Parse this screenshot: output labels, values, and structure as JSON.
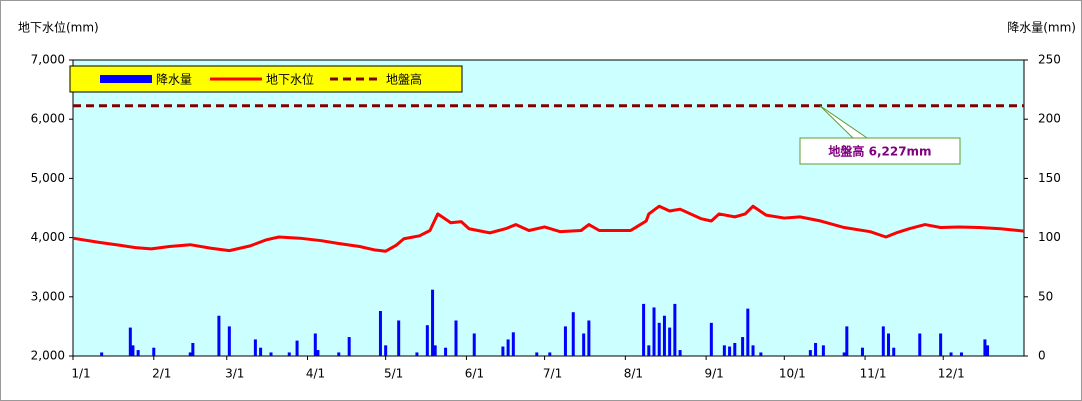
{
  "chart_data": {
    "type": "combo",
    "y_label": "地下水位(mm)",
    "y2_label": "降水量(mm)",
    "background": "#ccffff",
    "xlim": [
      0,
      365
    ],
    "xticks": [
      {
        "value": 0,
        "label": "1/1"
      },
      {
        "value": 31,
        "label": "2/1"
      },
      {
        "value": 59,
        "label": "3/1"
      },
      {
        "value": 90,
        "label": "4/1"
      },
      {
        "value": 120,
        "label": "5/1"
      },
      {
        "value": 151,
        "label": "6/1"
      },
      {
        "value": 181,
        "label": "7/1"
      },
      {
        "value": 212,
        "label": "8/1"
      },
      {
        "value": 243,
        "label": "9/1"
      },
      {
        "value": 273,
        "label": "10/1"
      },
      {
        "value": 304,
        "label": "11/1"
      },
      {
        "value": 334,
        "label": "12/1"
      }
    ],
    "ylim": [
      2000,
      7000
    ],
    "yticks": [
      {
        "value": 2000,
        "label": "2,000"
      },
      {
        "value": 3000,
        "label": "3,000"
      },
      {
        "value": 4000,
        "label": "4,000"
      },
      {
        "value": 5000,
        "label": "5,000"
      },
      {
        "value": 6000,
        "label": "6,000"
      },
      {
        "value": 7000,
        "label": "7,000"
      }
    ],
    "y2lim": [
      0,
      250
    ],
    "y2ticks": [
      0,
      50,
      100,
      150,
      200,
      250
    ],
    "legend": "top-left",
    "series": [
      {
        "name": "降水量",
        "type": "bar",
        "axis": "y2",
        "color": "#0000ff",
        "x": [
          11,
          22,
          23,
          25,
          31,
          45,
          46,
          56,
          60,
          70,
          72,
          76,
          83,
          86,
          93,
          94,
          102,
          106,
          118,
          120,
          125,
          132,
          136,
          138,
          139,
          143,
          147,
          154,
          165,
          167,
          169,
          178,
          183,
          189,
          192,
          196,
          198,
          219,
          221,
          223,
          225,
          227,
          229,
          231,
          233,
          245,
          250,
          252,
          254,
          257,
          259,
          261,
          264,
          283,
          285,
          288,
          296,
          297,
          303,
          311,
          313,
          315,
          325,
          333,
          337,
          341,
          350,
          351
        ],
        "values": [
          3,
          24,
          9,
          5,
          7,
          3,
          11,
          34,
          25,
          14,
          7,
          3,
          3,
          13,
          19,
          5,
          3,
          16,
          38,
          9,
          30,
          3,
          26,
          56,
          9,
          7,
          30,
          19,
          8,
          14,
          20,
          3,
          3,
          25,
          37,
          19,
          30,
          44,
          9,
          41,
          28,
          34,
          24,
          44,
          5,
          28,
          9,
          8,
          11,
          16,
          40,
          9,
          3,
          5,
          11,
          9,
          3,
          25,
          7,
          25,
          19,
          7,
          19,
          19,
          3,
          3,
          14,
          9
        ]
      },
      {
        "name": "地下水位",
        "type": "line",
        "color": "#ff0000",
        "x": [
          0,
          10,
          18,
          24,
          30,
          37,
          45,
          53,
          60,
          68,
          74,
          79,
          87,
          95,
          102,
          110,
          116,
          120,
          124,
          127,
          133,
          137,
          140,
          145,
          149,
          152,
          160,
          166,
          170,
          175,
          181,
          187,
          195,
          198,
          202,
          214,
          220,
          221,
          225,
          229,
          233,
          241,
          245,
          248,
          254,
          258,
          261,
          266,
          273,
          279,
          287,
          296,
          306,
          312,
          316,
          321,
          327,
          333,
          340,
          348,
          356,
          365
        ],
        "values": [
          3990,
          3920,
          3870,
          3830,
          3810,
          3850,
          3880,
          3820,
          3780,
          3860,
          3960,
          4010,
          3990,
          3950,
          3900,
          3850,
          3790,
          3770,
          3870,
          3980,
          4030,
          4120,
          4400,
          4250,
          4270,
          4150,
          4080,
          4150,
          4220,
          4120,
          4180,
          4100,
          4120,
          4220,
          4120,
          4120,
          4280,
          4400,
          4530,
          4450,
          4480,
          4320,
          4280,
          4400,
          4350,
          4400,
          4530,
          4380,
          4330,
          4350,
          4280,
          4170,
          4100,
          4010,
          4080,
          4150,
          4220,
          4170,
          4180,
          4170,
          4150,
          4110
        ]
      },
      {
        "name": "地盤高",
        "type": "hline",
        "color": "#800000",
        "values": [
          6227
        ]
      }
    ],
    "annotation": "地盤高 6,227mm"
  }
}
